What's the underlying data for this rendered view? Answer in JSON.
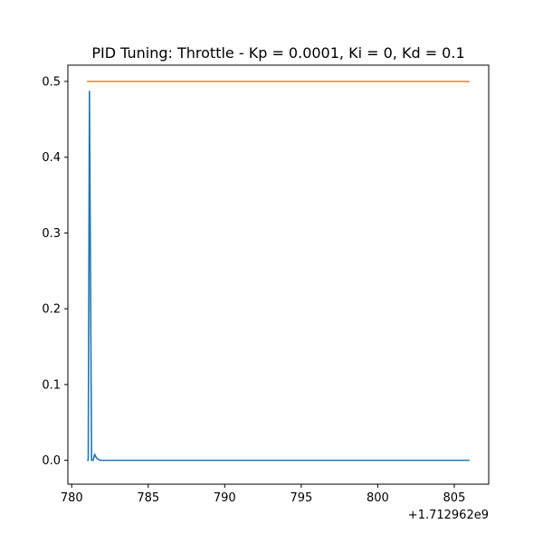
{
  "chart_data": {
    "type": "line",
    "title": "PID Tuning: Throttle - Kp = 0.0001, Ki = 0, Kd = 0.1",
    "xlabel": "",
    "ylabel": "",
    "x_offset_label": "+1.712962e9",
    "xlim": [
      779.75,
      807.25
    ],
    "ylim": [
      -0.0315,
      0.5215
    ],
    "x_ticks": [
      {
        "value": 780,
        "label": "780"
      },
      {
        "value": 785,
        "label": "785"
      },
      {
        "value": 790,
        "label": "790"
      },
      {
        "value": 795,
        "label": "795"
      },
      {
        "value": 800,
        "label": "800"
      },
      {
        "value": 805,
        "label": "805"
      }
    ],
    "y_ticks": [
      {
        "value": 0.0,
        "label": "0.0"
      },
      {
        "value": 0.1,
        "label": "0.1"
      },
      {
        "value": 0.2,
        "label": "0.2"
      },
      {
        "value": 0.3,
        "label": "0.3"
      },
      {
        "value": 0.4,
        "label": "0.4"
      },
      {
        "value": 0.5,
        "label": "0.5"
      }
    ],
    "grid": false,
    "legend": "none",
    "series": [
      {
        "color": "#1f77b4",
        "x": [
          781.0,
          781.08,
          781.16,
          781.3,
          781.4,
          781.5,
          781.62,
          781.75,
          781.9,
          782.1,
          783.0,
          790.0,
          800.0,
          806.0
        ],
        "y": [
          0.0,
          0.0,
          0.487,
          0.0,
          0.0,
          0.008,
          0.003,
          0.001,
          0.0,
          0.0,
          0.0,
          0.0,
          0.0,
          0.0
        ]
      },
      {
        "color": "#ff7f0e",
        "x": [
          781.0,
          806.0
        ],
        "y": [
          0.5,
          0.5
        ]
      }
    ]
  }
}
